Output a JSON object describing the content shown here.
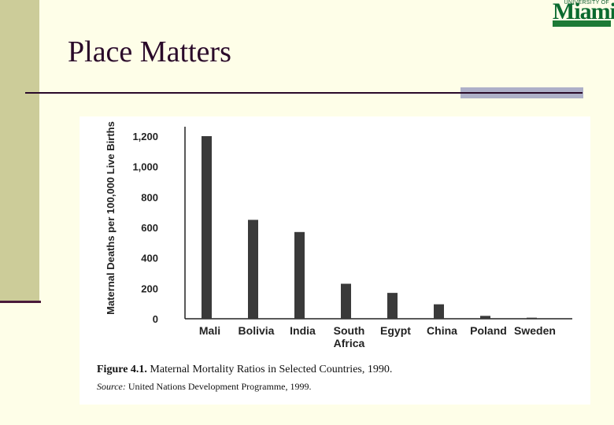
{
  "slide": {
    "title": "Place Matters"
  },
  "logo": {
    "top_text": "UNIVERSITY OF",
    "word": "Miami",
    "color": "#0b6a2f"
  },
  "figure": {
    "caption_label": "Figure 4.1.",
    "caption_text": "Maternal Mortality Ratios in Selected Countries, 1990.",
    "source_label": "Source:",
    "source_text": "United Nations Development Programme, 1999."
  },
  "chart_data": {
    "type": "bar",
    "ylabel": "Maternal Deaths per 100,000 Live Births",
    "xlabel": "",
    "ylim": [
      0,
      1200
    ],
    "yticks": [
      "0",
      "200",
      "400",
      "600",
      "800",
      "1,000",
      "1,200"
    ],
    "ytick_values": [
      0,
      200,
      400,
      600,
      800,
      1000,
      1200
    ],
    "categories": [
      [
        "Mali"
      ],
      [
        "Bolivia"
      ],
      [
        "India"
      ],
      [
        "South",
        "Africa"
      ],
      [
        "Egypt"
      ],
      [
        "China"
      ],
      [
        "Poland"
      ],
      [
        "Sweden"
      ]
    ],
    "values": [
      1200,
      650,
      570,
      230,
      170,
      95,
      19,
      7
    ],
    "bar_color": "#3a3a3a",
    "grid": false
  }
}
